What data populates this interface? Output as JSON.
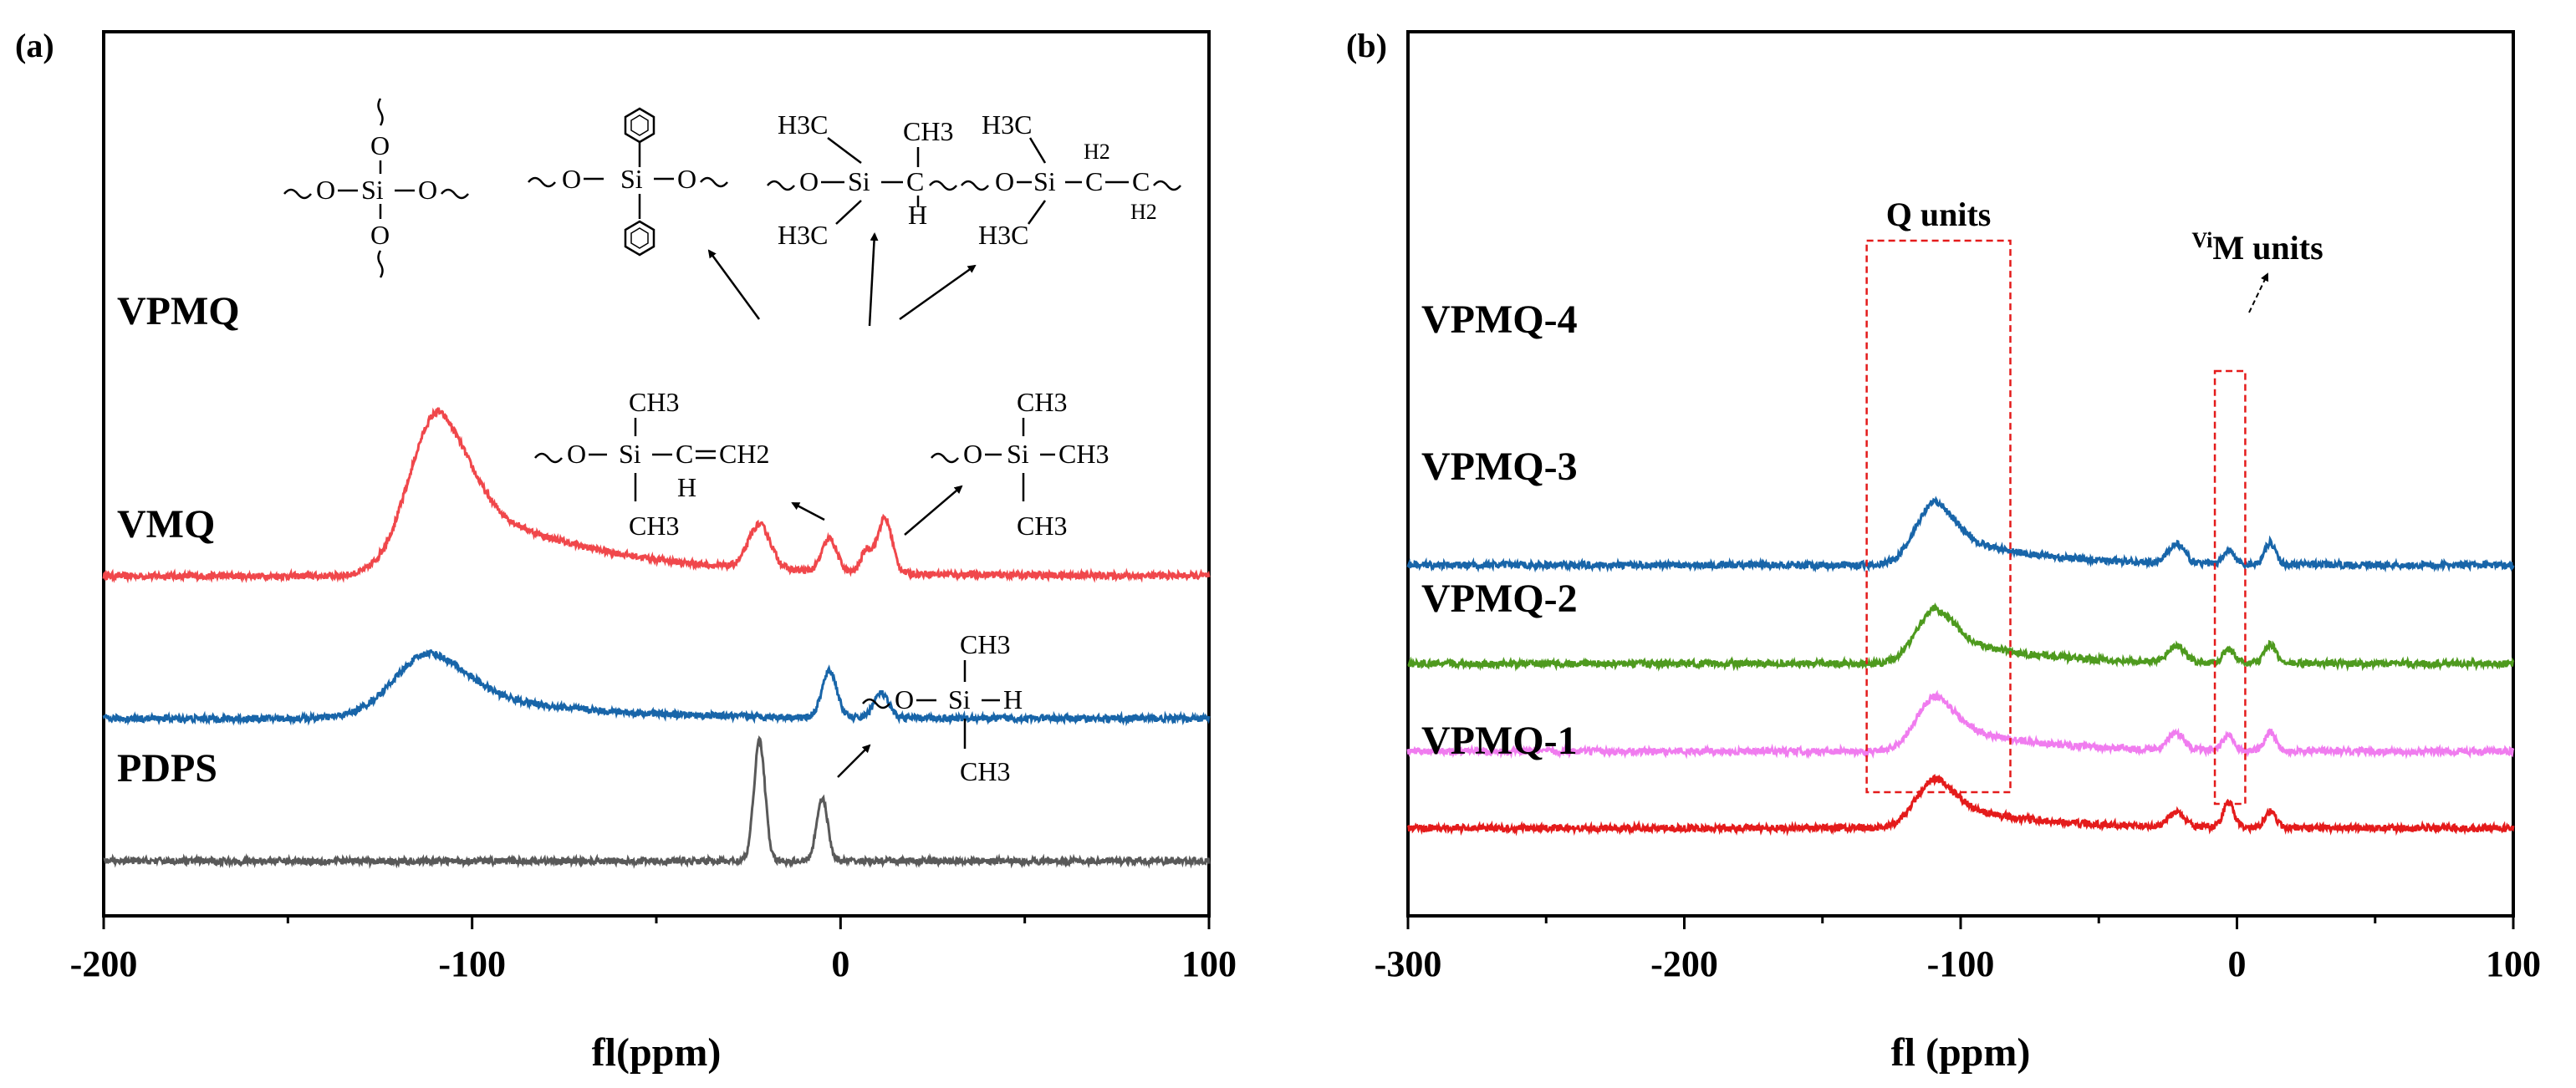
{
  "chart_data": [
    {
      "panel_label": "(a)",
      "type": "line",
      "xlabel": "fl(ppm)",
      "ylabel": "",
      "xlim": [
        -200,
        100
      ],
      "x_ticks": [
        -200,
        -100,
        0,
        100
      ],
      "x_tick_labels": [
        "-200",
        "-100",
        "0",
        "100"
      ],
      "series": [
        {
          "name": "VPMQ",
          "color": "#f0474b",
          "baseline": 0.62,
          "peaks": [
            {
              "x": -109,
              "h": 0.6,
              "w": 8,
              "tail": 35
            },
            {
              "x": -22,
              "h": 0.16,
              "w": 3
            },
            {
              "x": -3,
              "h": 0.12,
              "w": 2
            },
            {
              "x": 7,
              "h": 0.08,
              "w": 1.5
            },
            {
              "x": 12,
              "h": 0.2,
              "w": 2
            }
          ]
        },
        {
          "name": "VMQ",
          "color": "#1865a9",
          "baseline": 0.36,
          "peaks": [
            {
              "x": -111,
              "h": 0.24,
              "w": 10,
              "tail": 30
            },
            {
              "x": -3,
              "h": 0.17,
              "w": 2
            },
            {
              "x": 11,
              "h": 0.09,
              "w": 2
            }
          ]
        },
        {
          "name": "PDPS",
          "color": "#595959",
          "baseline": 0.1,
          "peaks": [
            {
              "x": -22,
              "h": 0.44,
              "w": 1.5
            },
            {
              "x": -5,
              "h": 0.23,
              "w": 1.5
            }
          ]
        }
      ],
      "annotations": {
        "q_unit": [
          "O",
          "Si",
          "O",
          "O",
          "O"
        ],
        "d_unit_ph": [
          "O",
          "Si",
          "O"
        ],
        "m_vi_top": [
          "H3C",
          "Si",
          "CH3",
          "C",
          "H",
          "O",
          "H3C"
        ],
        "m_ch2": [
          "H3C",
          "O",
          "Si",
          "H2",
          "C",
          "C",
          "H2",
          "H3C"
        ],
        "vinyl": [
          "CH3",
          "O",
          "Si",
          "C",
          "CH2",
          "H",
          "CH3"
        ],
        "tms": [
          "CH3",
          "O",
          "Si",
          "CH3",
          "CH3"
        ],
        "si_h": [
          "CH3",
          "O",
          "Si",
          "H",
          "CH3"
        ]
      }
    },
    {
      "panel_label": "(b)",
      "type": "line",
      "xlabel": "fl (ppm)",
      "ylabel": "",
      "xlim": [
        -300,
        100
      ],
      "x_ticks": [
        -300,
        -200,
        -100,
        0,
        100
      ],
      "x_tick_labels": [
        "-300",
        "-200",
        "-100",
        "0",
        "100"
      ],
      "series": [
        {
          "name": "VPMQ-4",
          "color": "#1865a9",
          "baseline": 0.64,
          "peaks": [
            {
              "x": -109,
              "h": 0.23,
              "w": 7,
              "tail": 30
            },
            {
              "x": -22,
              "h": 0.07,
              "w": 3
            },
            {
              "x": -3,
              "h": 0.05,
              "w": 2
            },
            {
              "x": 12,
              "h": 0.08,
              "w": 2
            }
          ]
        },
        {
          "name": "VPMQ-3",
          "color": "#4e9a1e",
          "baseline": 0.46,
          "peaks": [
            {
              "x": -109,
              "h": 0.2,
              "w": 7,
              "tail": 30
            },
            {
              "x": -22,
              "h": 0.06,
              "w": 3
            },
            {
              "x": -3,
              "h": 0.05,
              "w": 2
            },
            {
              "x": 12,
              "h": 0.07,
              "w": 2
            }
          ]
        },
        {
          "name": "VPMQ-2",
          "color": "#f07cef",
          "baseline": 0.3,
          "peaks": [
            {
              "x": -109,
              "h": 0.2,
              "w": 7,
              "tail": 30
            },
            {
              "x": -22,
              "h": 0.06,
              "w": 3
            },
            {
              "x": -3,
              "h": 0.06,
              "w": 2
            },
            {
              "x": 12,
              "h": 0.07,
              "w": 2
            }
          ]
        },
        {
          "name": "VPMQ-1",
          "color": "#e41b1b",
          "baseline": 0.16,
          "peaks": [
            {
              "x": -109,
              "h": 0.18,
              "w": 7,
              "tail": 30
            },
            {
              "x": -22,
              "h": 0.05,
              "w": 3
            },
            {
              "x": -3,
              "h": 0.09,
              "w": 2
            },
            {
              "x": 12,
              "h": 0.06,
              "w": 2
            }
          ]
        }
      ],
      "boxes": [
        {
          "label": "Q units",
          "x_range": [
            -134,
            -82
          ]
        },
        {
          "label_sup": "Vi",
          "label": "M units",
          "x_range": [
            -8,
            3
          ]
        }
      ]
    }
  ]
}
